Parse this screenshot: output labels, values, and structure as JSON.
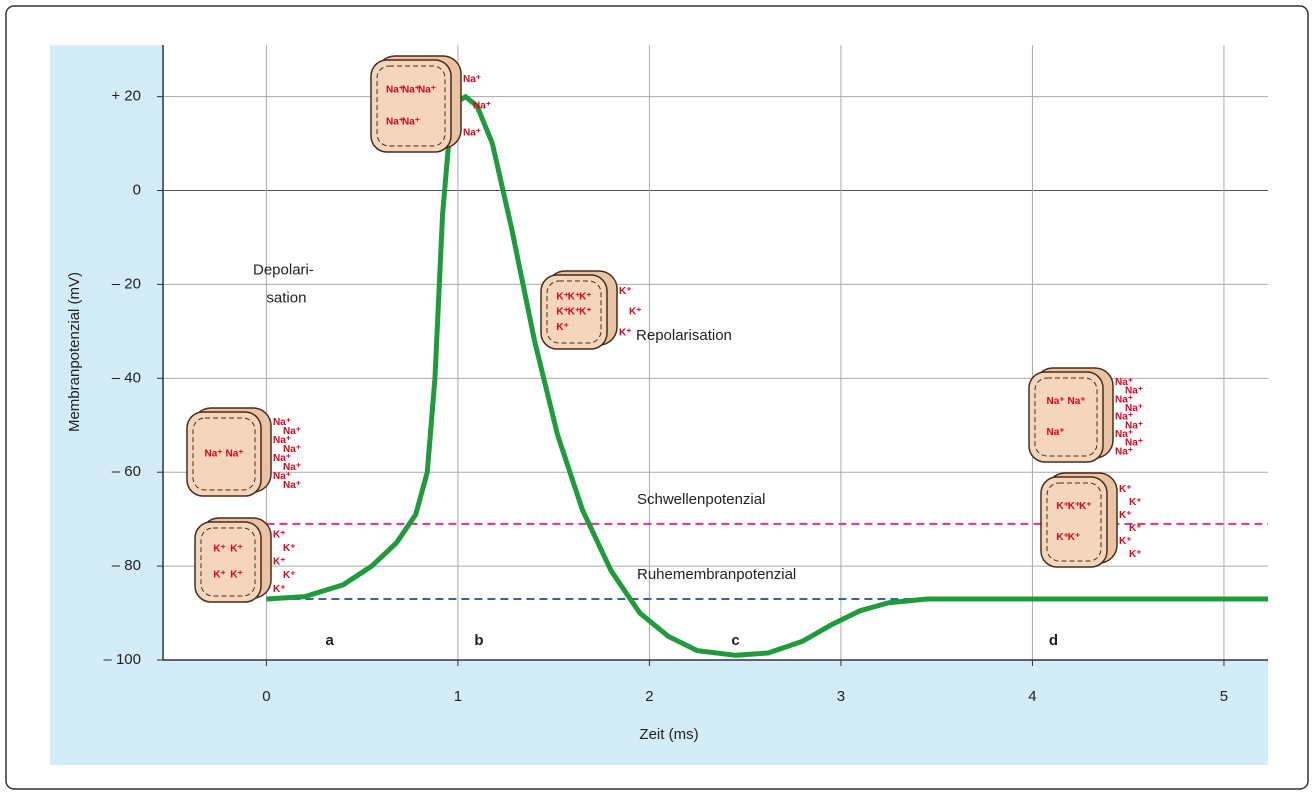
{
  "chart_data": {
    "type": "line",
    "x_label": "Zeit (ms)",
    "y_label": "Membranpotenzial (mV)",
    "xlim": [
      -0.54,
      5.23
    ],
    "ylim": [
      -100,
      31
    ],
    "xticks": [
      0,
      1,
      2,
      3,
      4,
      5
    ],
    "yticks": [
      {
        "value": 20,
        "label": "+ 20"
      },
      0,
      {
        "value": -20,
        "label": "– 20"
      },
      {
        "value": -40,
        "label": "– 40"
      },
      {
        "value": -60,
        "label": "– 60"
      },
      {
        "value": -80,
        "label": "– 80"
      },
      {
        "value": -100,
        "label": "– 100"
      }
    ],
    "grid": true,
    "series": [
      {
        "color": "#1f9a3c",
        "x": [
          0,
          0.2,
          0.4,
          0.55,
          0.68,
          0.78,
          0.84,
          0.88,
          0.92,
          0.96,
          1.0,
          1.04,
          1.1,
          1.18,
          1.28,
          1.4,
          1.52,
          1.65,
          1.8,
          1.95,
          2.1,
          2.25,
          2.45,
          2.62,
          2.8,
          2.95,
          3.1,
          3.25,
          3.45,
          4,
          5.23
        ],
        "values": [
          -87,
          -86.5,
          -84,
          -80,
          -75,
          -69,
          -60,
          -40,
          -5,
          14,
          19,
          20,
          18,
          10,
          -8,
          -32,
          -52,
          -68,
          -81,
          -90,
          -95,
          -98,
          -99,
          -98.5,
          -96,
          -92.5,
          -89.5,
          -87.8,
          -87,
          -87,
          -87
        ]
      }
    ],
    "reference_lines": [
      {
        "name": "Schwellenpotenzial",
        "value": -71,
        "color": "#e0338a"
      },
      {
        "name": "Ruhemembranpotenzial",
        "value": -87,
        "color": "#2a6aa8"
      }
    ],
    "annotations": [
      {
        "text": "Depolari-",
        "x": -0.07,
        "y": -17
      },
      {
        "text": "sation",
        "x": 0.0,
        "y": -23
      },
      {
        "text": "Repolarisation",
        "x": 1.93,
        "y": -31
      },
      {
        "text": "a",
        "x": 0.33,
        "y": -96
      },
      {
        "text": "b",
        "x": 1.11,
        "y": -96
      },
      {
        "text": "c",
        "x": 2.45,
        "y": -96
      },
      {
        "text": "d",
        "x": 4.11,
        "y": -96
      }
    ],
    "cells": [
      {
        "inside": [
          "Na⁺",
          "Na⁺",
          "Na⁺",
          "Na⁺",
          "Na⁺"
        ],
        "outside": [
          "Na⁺",
          "Na⁺",
          "Na⁺"
        ]
      },
      {
        "inside": [
          "K⁺",
          "K⁺",
          "K⁺",
          "K⁺",
          "K⁺",
          "K⁺",
          "K⁺"
        ],
        "outside": [
          "K⁺",
          "K⁺",
          "K⁺"
        ]
      },
      {
        "inside": [
          "Na⁺",
          "Na⁺"
        ],
        "outside": [
          "Na⁺",
          "Na⁺",
          "Na⁺",
          "Na⁺",
          "Na⁺",
          "Na⁺",
          "Na⁺",
          "Na⁺"
        ]
      },
      {
        "inside": [
          "K⁺",
          "K⁺",
          "K⁺",
          "K⁺"
        ],
        "outside": [
          "K⁺",
          "K⁺",
          "K⁺",
          "K⁺",
          "K⁺"
        ]
      },
      {
        "inside": [
          "Na⁺",
          "Na⁺",
          "Na⁺"
        ],
        "outside": [
          "Na⁺",
          "Na⁺",
          "Na⁺",
          "Na⁺",
          "Na⁺",
          "Na⁺",
          "Na⁺",
          "Na⁺",
          "Na⁺"
        ]
      },
      {
        "inside": [
          "K⁺",
          "K⁺",
          "K⁺",
          "K⁺",
          "K⁺"
        ],
        "outside": [
          "K⁺",
          "K⁺",
          "K⁺",
          "K⁺",
          "K⁺",
          "K⁺"
        ]
      }
    ]
  }
}
